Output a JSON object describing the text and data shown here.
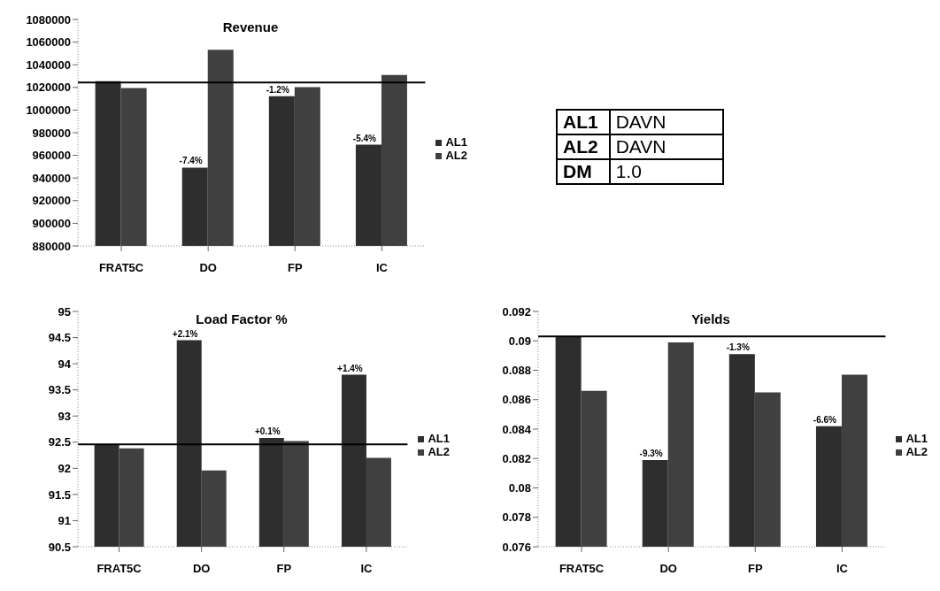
{
  "chart_data": [
    {
      "type": "bar",
      "title": "Revenue",
      "categories": [
        "FRAT5C",
        "DO",
        "FP",
        "IC"
      ],
      "series": [
        {
          "name": "AL1",
          "color": "#2e2e2e",
          "values": [
            1025500,
            949200,
            1012300,
            969400
          ]
        },
        {
          "name": "AL2",
          "color": "#404040",
          "values": [
            1019400,
            1053200,
            1020200,
            1031000
          ]
        }
      ],
      "annotations": [
        {
          "text": "-7.4%",
          "x": "DO",
          "y": 949200
        },
        {
          "text": "-1.2%",
          "x": "FP",
          "y": 1012300
        },
        {
          "text": "-5.4%",
          "x": "IC",
          "y": 969400
        }
      ],
      "ylim": [
        880000,
        1080000
      ],
      "yticks": [
        880000,
        900000,
        920000,
        940000,
        960000,
        980000,
        1000000,
        1020000,
        1040000,
        1060000,
        1080000
      ],
      "grid": false,
      "legend": "right",
      "ref_lines": [
        {
          "axis": "y",
          "value": 1024400,
          "color": "#000000"
        }
      ]
    },
    {
      "type": "other",
      "annotations": [
        "AL1",
        "DAVN",
        "AL2",
        "DAVN",
        "DM",
        "1.0"
      ]
    },
    {
      "type": "bar",
      "title": "Load Factor %",
      "categories": [
        "FRAT5C",
        "DO",
        "FP",
        "IC"
      ],
      "series": [
        {
          "name": "AL1",
          "color": "#2e2e2e",
          "values": [
            92.46,
            94.45,
            92.58,
            93.79
          ]
        },
        {
          "name": "AL2",
          "color": "#404040",
          "values": [
            92.38,
            91.96,
            92.52,
            92.2
          ]
        }
      ],
      "annotations": [
        {
          "text": "+2.1%",
          "x": "DO",
          "y": 94.45
        },
        {
          "text": "+0.1%",
          "x": "FP",
          "y": 92.58
        },
        {
          "text": "+1.4%",
          "x": "IC",
          "y": 93.79
        }
      ],
      "ylim": [
        90.5,
        95
      ],
      "yticks": [
        90.5,
        91,
        91.5,
        92,
        92.5,
        93,
        93.5,
        94,
        94.5,
        95
      ],
      "grid": false,
      "legend": "right",
      "ref_lines": [
        {
          "axis": "y",
          "value": 92.46,
          "color": "#000000"
        }
      ]
    },
    {
      "type": "bar",
      "title": "Yields",
      "categories": [
        "FRAT5C",
        "DO",
        "FP",
        "IC"
      ],
      "series": [
        {
          "name": "AL1",
          "color": "#2e2e2e",
          "values": [
            0.0903,
            0.0819,
            0.0891,
            0.0842
          ]
        },
        {
          "name": "AL2",
          "color": "#404040",
          "values": [
            0.0866,
            0.0899,
            0.0865,
            0.0877
          ]
        }
      ],
      "annotations": [
        {
          "text": "-9.3%",
          "x": "DO",
          "y": 0.0819
        },
        {
          "text": "-1.3%",
          "x": "FP",
          "y": 0.0891
        },
        {
          "text": "-6.6%",
          "x": "IC",
          "y": 0.0842
        }
      ],
      "ylim": [
        0.076,
        0.092
      ],
      "yticks": [
        0.076,
        0.078,
        0.08,
        0.082,
        0.084,
        0.086,
        0.088,
        0.09,
        0.092
      ],
      "grid": false,
      "legend": "right",
      "ref_lines": [
        {
          "axis": "y",
          "value": 0.0903,
          "color": "#000000"
        }
      ]
    }
  ]
}
